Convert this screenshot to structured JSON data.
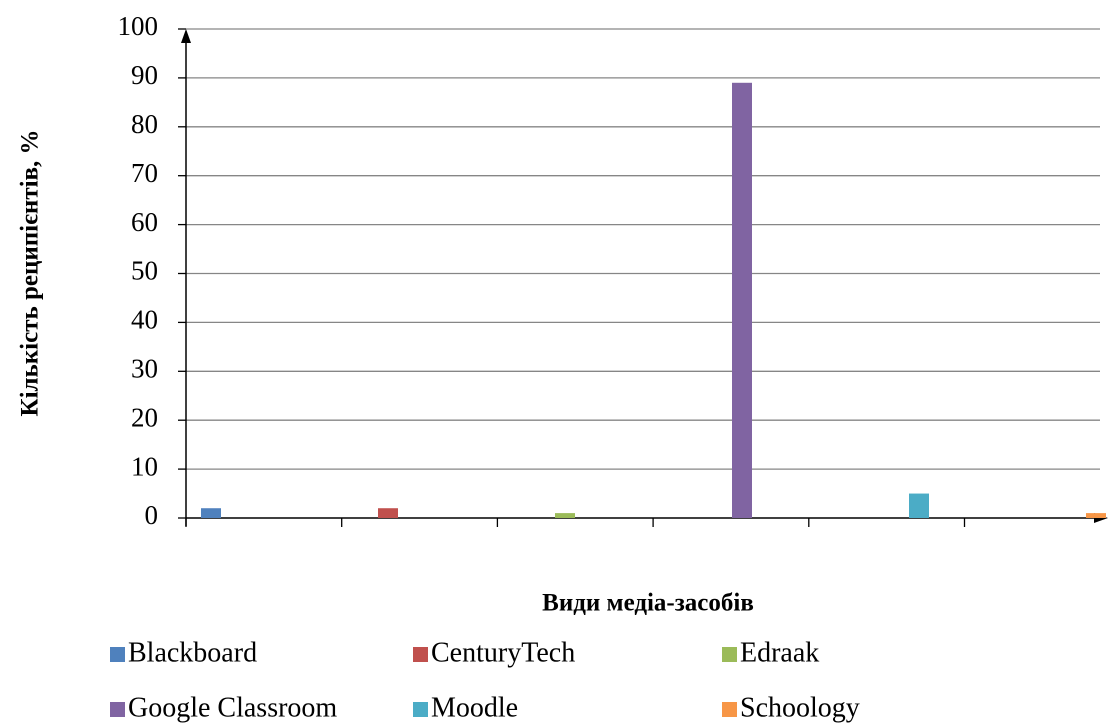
{
  "chart_data": {
    "type": "bar",
    "x_label": "Види медіа-засобів",
    "y_label": "Кількість реципієнтів, %",
    "series": [
      {
        "name": "Blackboard",
        "color": "#4f81bd",
        "values": [
          2
        ]
      },
      {
        "name": "CenturyTech",
        "color": "#c0504d",
        "values": [
          2
        ]
      },
      {
        "name": "Edraak",
        "color": "#9bbb59",
        "values": [
          1
        ]
      },
      {
        "name": "Google Classroom",
        "color": "#8064a2",
        "values": [
          89
        ]
      },
      {
        "name": "Moodle",
        "color": "#4bacc6",
        "values": [
          5
        ]
      },
      {
        "name": "Schoology",
        "color": "#f79646",
        "values": [
          1
        ]
      }
    ],
    "ylim": [
      0,
      100
    ],
    "yticks": [
      0,
      10,
      20,
      30,
      40,
      50,
      60,
      70,
      80,
      90,
      100
    ],
    "grid": true,
    "legend": "bottom"
  }
}
